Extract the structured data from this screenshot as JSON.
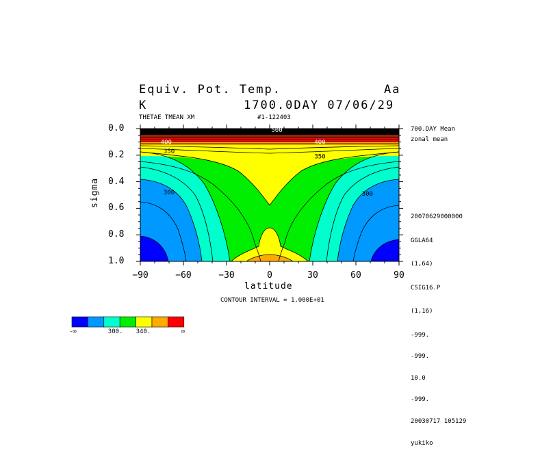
{
  "header": {
    "title_left": "Equiv. Pot. Temp.",
    "title_right": "Aa",
    "units": "K",
    "time": "1700.0DAY 07/06/29",
    "variable": "THETAE TMEAN XM",
    "run_id": "#1-122403"
  },
  "side_info": {
    "line1": "700.DAY Mean",
    "line2": "zonal mean",
    "meta": [
      "20070629000000",
      "GGLA64",
      "(1,64)",
      "CSIG16.P",
      "(1,16)",
      "-999.",
      "-999.",
      "10.0",
      "-999.",
      "20030717 105129",
      "yukiko"
    ]
  },
  "footer": {
    "contour_interval": "CONTOUR INTERVAL = 1.000E+01"
  },
  "colors": {
    "c1": "#0000ff",
    "c2": "#0099ff",
    "c3": "#00ffcc",
    "c4": "#00ee00",
    "c5": "#ffff00",
    "c6": "#ffaa00",
    "c7": "#ff0000",
    "dark": "#000000"
  },
  "colorbar": {
    "labels": [
      "-∞",
      "300.",
      "340.",
      "∞"
    ]
  },
  "chart_data": {
    "type": "heatmap",
    "title": "Equiv. Pot. Temp.",
    "xlabel": "latitude",
    "ylabel": "sigma",
    "xlim": [
      -90,
      90
    ],
    "ylim": [
      1.0,
      0.0
    ],
    "xticks": [
      -90,
      -60,
      -30,
      0,
      30,
      60,
      90
    ],
    "yticks": [
      0.0,
      0.2,
      0.4,
      0.6,
      0.8,
      1.0
    ],
    "xtick_labels": [
      "−90",
      "−60",
      "−30",
      "0",
      "30",
      "60",
      "90"
    ],
    "ytick_labels": [
      "0.0",
      "0.2",
      "0.4",
      "0.6",
      "0.8",
      "1.0"
    ],
    "contour_labels": [
      {
        "text": "350",
        "lat": -70,
        "sigma": 0.17
      },
      {
        "text": "350",
        "lat": 35,
        "sigma": 0.21
      },
      {
        "text": "300",
        "lat": -70,
        "sigma": 0.48
      },
      {
        "text": "300",
        "lat": 68,
        "sigma": 0.49
      },
      {
        "text": "400",
        "lat": -72,
        "sigma": 0.1
      },
      {
        "text": "400",
        "lat": 35,
        "sigma": 0.1
      },
      {
        "text": "500",
        "lat": 5,
        "sigma": 0.01
      }
    ],
    "lat": [
      -90,
      -60,
      -30,
      0,
      30,
      60,
      90
    ],
    "sigma": [
      0.0,
      0.2,
      0.4,
      0.6,
      0.8,
      1.0
    ],
    "values": [
      [
        520,
        520,
        520,
        520,
        520,
        520,
        520
      ],
      [
        345,
        345,
        346,
        352,
        346,
        345,
        345
      ],
      [
        310,
        318,
        330,
        346,
        330,
        318,
        310
      ],
      [
        295,
        305,
        325,
        338,
        325,
        305,
        295
      ],
      [
        285,
        300,
        325,
        342,
        325,
        300,
        285
      ],
      [
        280,
        300,
        328,
        352,
        328,
        300,
        280
      ]
    ],
    "contour_interval": 10,
    "colorbar_levels": [
      300,
      340
    ]
  }
}
